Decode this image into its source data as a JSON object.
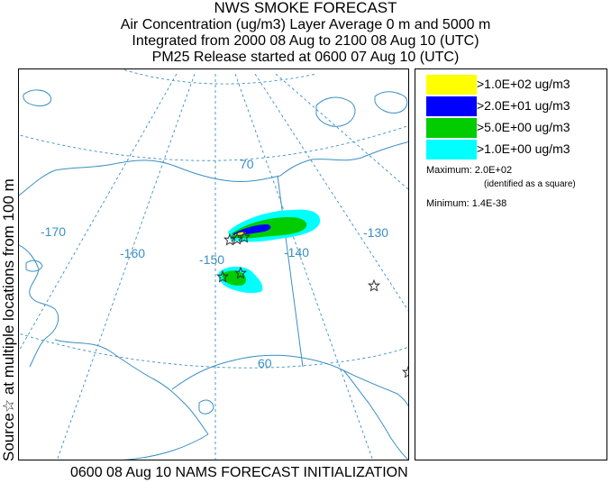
{
  "header": {
    "title": "NWS SMOKE FORECAST",
    "line2": "Air Concentration (ug/m3) Layer Average    0 m and  5000 m",
    "line3": "Integrated from 2000 08 Aug to 2100 08 Aug 10 (UTC)",
    "line4": "PM25 Release started at 0600 07 Aug 10 (UTC)"
  },
  "side_label": "Source☆ at multiple locations from  100 m",
  "footer": "0600 08 Aug 10 NAMS FORECAST INITIALIZATION",
  "map": {
    "longitude_labels": [
      "-170",
      "-160",
      "-150",
      "-140",
      "-130"
    ],
    "latitude_labels": [
      "70",
      "60"
    ],
    "colors": {
      "grid": "#3a8fc4",
      "coast": "#3a8fc4",
      "source_marker": "#333333"
    }
  },
  "legend": {
    "items": [
      {
        "label": ">1.0E+02 ug/m3",
        "color": "#ffff00"
      },
      {
        "label": ">2.0E+01 ug/m3",
        "color": "#0000ff"
      },
      {
        "label": ">5.0E+00 ug/m3",
        "color": "#00cc00"
      },
      {
        "label": ">1.0E+00 ug/m3",
        "color": "#00ffff"
      }
    ],
    "maximum_label": "Maximum: 2.0E+02",
    "maximum_note": "(identified as a square)",
    "minimum_label": "Minimum: 1.4E-38"
  }
}
